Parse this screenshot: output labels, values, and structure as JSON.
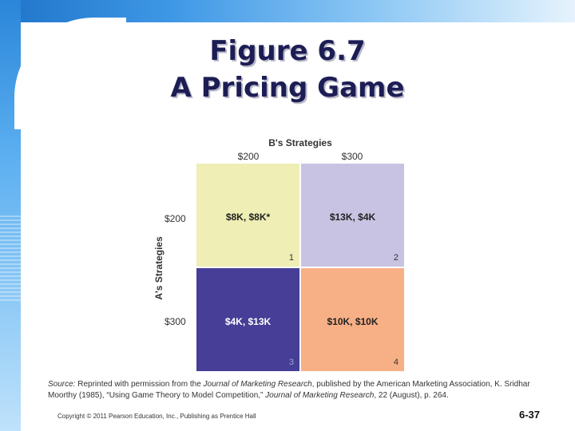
{
  "slide": {
    "title_line1": "Figure 6.7",
    "title_line2": "A Pricing Game"
  },
  "matrix": {
    "b_label": "B's Strategies",
    "a_label": "A's Strategies",
    "b_columns": [
      "$200",
      "$300"
    ],
    "a_rows": [
      "$200",
      "$300"
    ],
    "cells": [
      {
        "payoff": "$8K, $8K*",
        "number": "1",
        "color": "#eeeeb5"
      },
      {
        "payoff": "$13K, $4K",
        "number": "2",
        "color": "#c8c3e3"
      },
      {
        "payoff": "$4K, $13K",
        "number": "3",
        "color": "#463e97"
      },
      {
        "payoff": "$10K, $10K",
        "number": "4",
        "color": "#f7b085"
      }
    ]
  },
  "source": {
    "label": "Source:",
    "t1": " Reprinted with permission from the ",
    "j1": "Journal of Marketing Research",
    "t2": ", published by the American Marketing Association, K. Sridhar Moorthy (1985), “Using Game Theory to Model Competition,” ",
    "j2": "Journal of Marketing Research",
    "t3": ", 22 (August), p. 264."
  },
  "footer": {
    "copyright": "Copyright © 2011 Pearson Education, Inc., Publishing as Prentice Hall",
    "page_number": "6-37"
  }
}
